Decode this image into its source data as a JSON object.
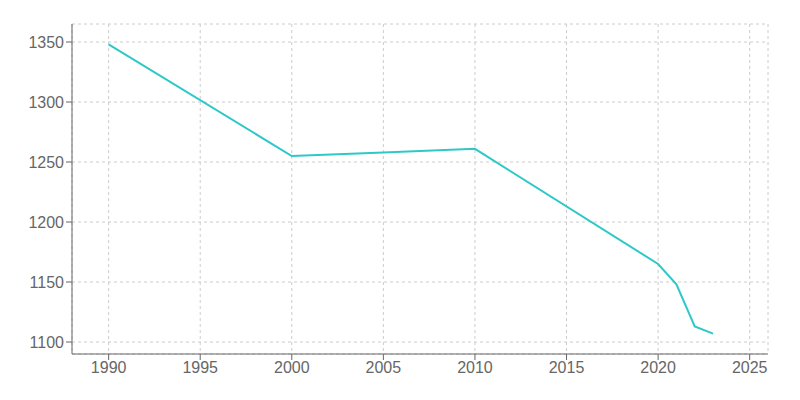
{
  "chart_data": {
    "type": "line",
    "x": [
      1990,
      2000,
      2005,
      2010,
      2020,
      2021,
      2022,
      2023
    ],
    "values": [
      1348,
      1255,
      1258,
      1261,
      1165,
      1148,
      1113,
      1107
    ],
    "color": "#2ec8c8",
    "xlim": [
      1988,
      2026
    ],
    "ylim": [
      1090,
      1365
    ],
    "xticks": [
      1990,
      1995,
      2000,
      2005,
      2010,
      2015,
      2020,
      2025
    ],
    "yticks": [
      1100,
      1150,
      1200,
      1250,
      1300,
      1350
    ],
    "grid": true
  }
}
